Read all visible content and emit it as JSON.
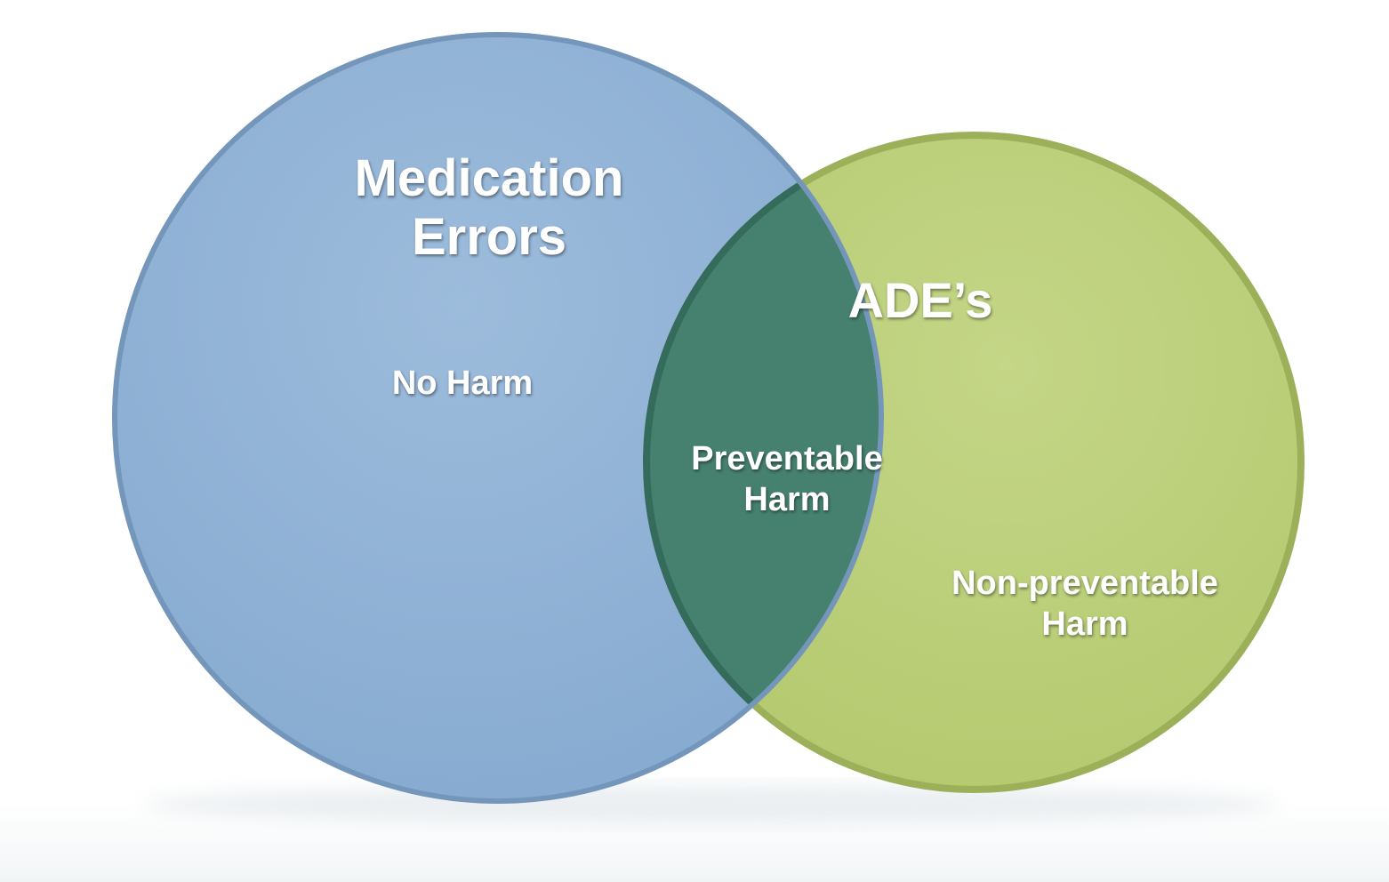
{
  "diagram": {
    "sets": [
      {
        "id": "medication-errors",
        "label": "Medication\nErrors",
        "region_label": "No Harm",
        "color": "#8fb2d6"
      },
      {
        "id": "ades",
        "label": "ADE’s",
        "region_label": "Non-preventable\nHarm",
        "color": "#bdd07c"
      }
    ],
    "intersection": {
      "label": "Preventable\nHarm",
      "color": "#46806f"
    }
  }
}
